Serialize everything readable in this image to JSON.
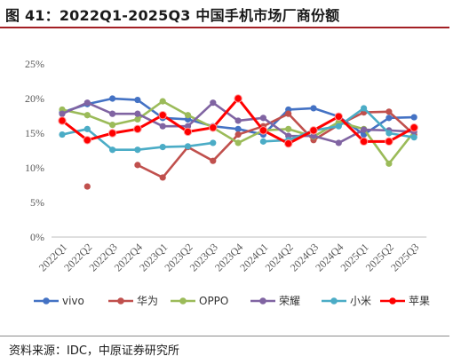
{
  "header": {
    "title": "图 41：2022Q1-2025Q3 中国手机市场厂商份额"
  },
  "footer": {
    "source": "资料来源：IDC，中原证券研究所"
  },
  "chart_data": {
    "type": "line",
    "title": "",
    "xlabel": "",
    "ylabel": "",
    "categories": [
      "2022Q1",
      "2022Q2",
      "2022Q3",
      "2022Q4",
      "2023Q1",
      "2023Q2",
      "2023Q3",
      "2023Q4",
      "2024Q1",
      "2024Q2",
      "2024Q3",
      "2024Q4",
      "2025Q1",
      "2025Q2",
      "2025Q3"
    ],
    "y_ticks": [
      "0%",
      "5%",
      "10%",
      "15%",
      "20%",
      "25%"
    ],
    "ylim": [
      0,
      25
    ],
    "grid": false,
    "legend_position": "bottom",
    "series": [
      {
        "name": "vivo",
        "color": "#4472c4",
        "values": [
          18.0,
          19.2,
          20.0,
          19.8,
          17.2,
          17.0,
          16.0,
          15.6,
          14.8,
          18.4,
          18.6,
          17.4,
          14.8,
          17.2,
          17.3
        ]
      },
      {
        "name": "华为",
        "color": "#c0504d",
        "values": [
          null,
          7.3,
          null,
          10.4,
          8.6,
          13.0,
          11.0,
          14.8,
          16.0,
          17.8,
          14.0,
          16.2,
          18.0,
          18.1,
          14.8
        ]
      },
      {
        "name": "OPPO",
        "color": "#9bbb59",
        "values": [
          18.4,
          17.6,
          16.2,
          17.0,
          19.6,
          17.6,
          15.8,
          13.6,
          15.4,
          15.6,
          14.5,
          16.6,
          15.6,
          10.6,
          15.2
        ]
      },
      {
        "name": "荣耀",
        "color": "#8064a2",
        "values": [
          17.8,
          19.4,
          17.8,
          17.8,
          16.0,
          16.0,
          19.4,
          16.8,
          17.2,
          14.6,
          14.6,
          13.6,
          15.5,
          15.4,
          15.2
        ]
      },
      {
        "name": "小米",
        "color": "#4bacc6",
        "values": [
          14.8,
          15.6,
          12.6,
          12.6,
          13.0,
          13.1,
          13.6,
          null,
          13.8,
          14.0,
          15.4,
          16.0,
          18.6,
          15.0,
          14.4
        ]
      },
      {
        "name": "苹果",
        "color": "#ff0000",
        "values": [
          16.8,
          14.0,
          15.0,
          15.6,
          17.6,
          15.2,
          15.8,
          20.0,
          15.4,
          13.5,
          15.4,
          17.4,
          13.8,
          13.8,
          15.8
        ]
      }
    ]
  }
}
